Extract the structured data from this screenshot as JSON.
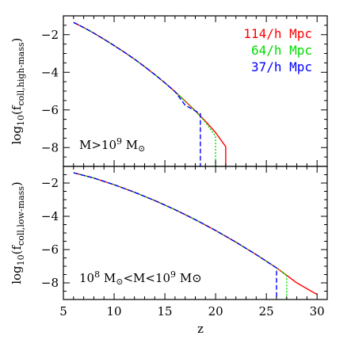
{
  "chart_data": {
    "type": "line",
    "x_ticks": [
      5,
      10,
      15,
      20,
      25,
      30
    ],
    "y_ticks": [
      -2,
      -4,
      -6,
      -8
    ],
    "xlim": [
      5,
      31
    ],
    "xlabel": "z",
    "legend": [
      {
        "name": "114/h Mpc",
        "color": "#ff0000",
        "style": "solid"
      },
      {
        "name": "64/h Mpc",
        "color": "#00dd00",
        "style": "dotted"
      },
      {
        "name": "37/h Mpc",
        "color": "#0000ff",
        "style": "dashed"
      }
    ],
    "legend_placement": "top-right",
    "panels": [
      {
        "id": "high-mass",
        "ylim": [
          -9,
          -1
        ],
        "ylabel": {
          "pre": "log",
          "sub1": "10",
          "mid": "(f",
          "sub2": "coll,high-mass",
          "post": ")"
        },
        "annotation": {
          "lhs": "M>10",
          "sup1": "9",
          "mid": " M",
          "sym": "⊙",
          "mid2": "",
          "sup2": "",
          "tail": ""
        },
        "series": [
          {
            "name": "114/h Mpc",
            "x": [
              6,
              7,
              8,
              9,
              10,
              11,
              12,
              13,
              14,
              15,
              16,
              17,
              18,
              19,
              20,
              21,
              21
            ],
            "y": [
              -1.35,
              -1.62,
              -1.92,
              -2.24,
              -2.58,
              -2.93,
              -3.3,
              -3.7,
              -4.12,
              -4.56,
              -5.03,
              -5.53,
              -6.05,
              -6.6,
              -7.2,
              -7.95,
              -9.0
            ]
          },
          {
            "name": "64/h Mpc",
            "x": [
              6,
              7,
              8,
              9,
              10,
              11,
              12,
              13,
              14,
              15,
              16,
              17,
              18,
              19,
              20,
              20
            ],
            "y": [
              -1.35,
              -1.62,
              -1.92,
              -2.24,
              -2.58,
              -2.93,
              -3.3,
              -3.7,
              -4.12,
              -4.56,
              -5.03,
              -5.53,
              -6.05,
              -6.65,
              -7.4,
              -9.0
            ]
          },
          {
            "name": "37/h Mpc",
            "x": [
              6,
              7,
              8,
              9,
              10,
              11,
              12,
              13,
              14,
              15,
              16,
              17,
              18.5,
              18.5
            ],
            "y": [
              -1.35,
              -1.62,
              -1.92,
              -2.24,
              -2.58,
              -2.93,
              -3.3,
              -3.7,
              -4.12,
              -4.56,
              -5.03,
              -5.75,
              -6.2,
              -9.0
            ]
          }
        ]
      },
      {
        "id": "low-mass",
        "ylim": [
          -9,
          -1
        ],
        "ylabel": {
          "pre": "log",
          "sub1": "10",
          "mid": "(f",
          "sub2": "coll,low-mass",
          "post": ")"
        },
        "annotation": {
          "lhs": "10",
          "sup1": "8",
          "mid": " M",
          "sym": "⊙",
          "mid2": "<M<10",
          "sup2": "9",
          "tail": " M⊙"
        },
        "series": [
          {
            "name": "114/h Mpc",
            "x": [
              6,
              8,
              10,
              12,
              14,
              16,
              18,
              20,
              22,
              24,
              26,
              27,
              28,
              29,
              30
            ],
            "y": [
              -1.38,
              -1.7,
              -2.1,
              -2.55,
              -3.05,
              -3.6,
              -4.2,
              -4.85,
              -5.55,
              -6.3,
              -7.1,
              -7.55,
              -8.0,
              -8.35,
              -8.7
            ]
          },
          {
            "name": "64/h Mpc",
            "x": [
              6,
              8,
              10,
              12,
              14,
              16,
              18,
              20,
              22,
              24,
              26,
              27,
              27
            ],
            "y": [
              -1.38,
              -1.7,
              -2.1,
              -2.55,
              -3.05,
              -3.6,
              -4.2,
              -4.85,
              -5.55,
              -6.3,
              -7.1,
              -7.55,
              -9.0
            ]
          },
          {
            "name": "37/h Mpc",
            "x": [
              6,
              8,
              10,
              12,
              14,
              16,
              18,
              20,
              22,
              24,
              26,
              26
            ],
            "y": [
              -1.38,
              -1.7,
              -2.1,
              -2.55,
              -3.05,
              -3.6,
              -4.2,
              -4.85,
              -5.55,
              -6.3,
              -7.1,
              -9.0
            ]
          }
        ]
      }
    ]
  }
}
